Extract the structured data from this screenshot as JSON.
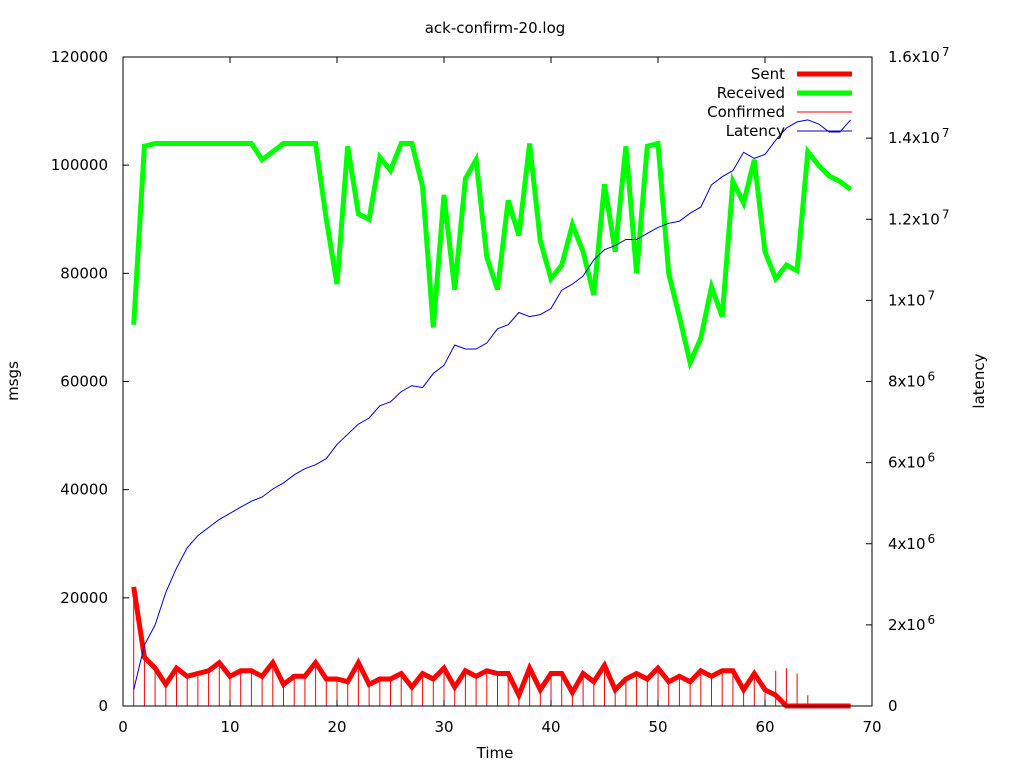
{
  "chart_data": {
    "type": "line",
    "title": "ack-confirm-20.log",
    "xlabel": "Time",
    "ylabel": "msgs",
    "y2label": "latency",
    "xlim": [
      0,
      70
    ],
    "ylim": [
      0,
      120000
    ],
    "y2lim": [
      0,
      16000000
    ],
    "xticks": [
      0,
      10,
      20,
      30,
      40,
      50,
      60,
      70
    ],
    "yticks": [
      "0",
      "20000",
      "40000",
      "60000",
      "80000",
      "100000",
      "120000"
    ],
    "y2ticks": [
      {
        "base": "0",
        "exp": ""
      },
      {
        "base": "2x10",
        "exp": "6"
      },
      {
        "base": "4x10",
        "exp": "6"
      },
      {
        "base": "6x10",
        "exp": "6"
      },
      {
        "base": "8x10",
        "exp": "6"
      },
      {
        "base": "1x10",
        "exp": "7"
      },
      {
        "base": "1.2x10",
        "exp": "7"
      },
      {
        "base": "1.4x10",
        "exp": "7"
      },
      {
        "base": "1.6x10",
        "exp": "7"
      }
    ],
    "y2tick_values": [
      0,
      2000000,
      4000000,
      6000000,
      8000000,
      10000000,
      12000000,
      14000000,
      16000000
    ],
    "legend_position": "top-right",
    "grid": false,
    "series": [
      {
        "name": "Sent",
        "axis": "y",
        "style": "thick-line",
        "color": "#ff0000",
        "x": [
          1,
          2,
          3,
          4,
          5,
          6,
          7,
          8,
          9,
          10,
          11,
          12,
          13,
          14,
          15,
          16,
          17,
          18,
          19,
          20,
          21,
          22,
          23,
          24,
          25,
          26,
          27,
          28,
          29,
          30,
          31,
          32,
          33,
          34,
          35,
          36,
          37,
          38,
          39,
          40,
          41,
          42,
          43,
          44,
          45,
          46,
          47,
          48,
          49,
          50,
          51,
          52,
          53,
          54,
          55,
          56,
          57,
          58,
          59,
          60,
          61,
          62,
          63,
          64,
          65,
          66,
          67,
          68
        ],
        "values": [
          22000,
          9000,
          7000,
          4000,
          7000,
          5500,
          6000,
          6500,
          8000,
          5500,
          6500,
          6500,
          5500,
          8000,
          4000,
          5500,
          5500,
          8000,
          5000,
          5000,
          4500,
          8000,
          4000,
          5000,
          5000,
          6000,
          3500,
          6000,
          5000,
          7000,
          3500,
          6500,
          5500,
          6500,
          6000,
          6000,
          2000,
          7000,
          3000,
          6000,
          6000,
          2500,
          6000,
          4500,
          7500,
          3000,
          5000,
          6000,
          5000,
          7000,
          4500,
          5500,
          4500,
          6500,
          5500,
          6500,
          6500,
          3000,
          6000,
          3000,
          2000,
          0,
          0,
          0,
          0,
          0,
          0,
          0
        ]
      },
      {
        "name": "Received",
        "axis": "y",
        "style": "thick-line",
        "color": "#00ff00",
        "x": [
          1,
          2,
          3,
          4,
          5,
          6,
          7,
          8,
          9,
          10,
          11,
          12,
          13,
          14,
          15,
          16,
          17,
          18,
          19,
          20,
          21,
          22,
          23,
          24,
          25,
          26,
          27,
          28,
          29,
          30,
          31,
          32,
          33,
          34,
          35,
          36,
          37,
          38,
          39,
          40,
          41,
          42,
          43,
          44,
          45,
          46,
          47,
          48,
          49,
          50,
          51,
          52,
          53,
          54,
          55,
          56,
          57,
          58,
          59,
          60,
          61,
          62,
          63,
          64,
          65,
          66,
          67,
          68
        ],
        "values": [
          70500,
          103500,
          104000,
          104000,
          104000,
          104000,
          104000,
          104000,
          104000,
          104000,
          104000,
          104000,
          101000,
          102500,
          104000,
          104000,
          104000,
          104000,
          90000,
          78000,
          103500,
          91000,
          90000,
          101500,
          99000,
          104000,
          104000,
          96000,
          70000,
          94500,
          77000,
          97500,
          101000,
          83000,
          77000,
          93500,
          87000,
          104000,
          86000,
          79000,
          81500,
          89000,
          84000,
          76000,
          96500,
          84000,
          103500,
          80000,
          103500,
          104000,
          80000,
          72000,
          63500,
          68000,
          77500,
          72000,
          97000,
          93000,
          101000,
          84000,
          79000,
          81500,
          80500,
          102500,
          100000,
          98000,
          97000,
          95500
        ]
      },
      {
        "name": "Confirmed",
        "axis": "y",
        "style": "impulses",
        "color": "#ff0000",
        "x": [
          1,
          2,
          3,
          4,
          5,
          6,
          7,
          8,
          9,
          10,
          11,
          12,
          13,
          14,
          15,
          16,
          17,
          18,
          19,
          20,
          21,
          22,
          23,
          24,
          25,
          26,
          27,
          28,
          29,
          30,
          31,
          32,
          33,
          34,
          35,
          36,
          37,
          38,
          39,
          40,
          41,
          42,
          43,
          44,
          45,
          46,
          47,
          48,
          49,
          50,
          51,
          52,
          53,
          54,
          55,
          56,
          57,
          58,
          59,
          60,
          61,
          62,
          63,
          64
        ],
        "values": [
          22000,
          9000,
          7000,
          4000,
          7000,
          5500,
          6000,
          6500,
          8000,
          5500,
          6500,
          6500,
          5500,
          8000,
          4000,
          5500,
          5500,
          8000,
          5000,
          5000,
          4500,
          8000,
          4000,
          5000,
          5000,
          6000,
          3500,
          6000,
          5000,
          7000,
          3500,
          6500,
          5500,
          6500,
          6000,
          6000,
          2000,
          7000,
          3000,
          6000,
          6000,
          2500,
          6000,
          4500,
          7500,
          3000,
          5000,
          6000,
          5000,
          7000,
          4500,
          5500,
          4500,
          6500,
          5500,
          6500,
          6500,
          3000,
          6000,
          3000,
          6500,
          7000,
          6000,
          2000
        ]
      },
      {
        "name": "Latency",
        "axis": "y2",
        "style": "thin-line",
        "color": "#0000cc",
        "x": [
          1,
          2,
          3,
          4,
          5,
          6,
          7,
          8,
          9,
          10,
          11,
          12,
          13,
          14,
          15,
          16,
          17,
          18,
          19,
          20,
          21,
          22,
          23,
          24,
          25,
          26,
          27,
          28,
          29,
          30,
          31,
          32,
          33,
          34,
          35,
          36,
          37,
          38,
          39,
          40,
          41,
          42,
          43,
          44,
          45,
          46,
          47,
          48,
          49,
          50,
          51,
          52,
          53,
          54,
          55,
          56,
          57,
          58,
          59,
          60,
          61,
          62,
          63,
          64,
          65,
          66,
          67,
          68
        ],
        "values": [
          400000,
          1500000,
          2000000,
          2800000,
          3400000,
          3900000,
          4200000,
          4400000,
          4600000,
          4750000,
          4900000,
          5050000,
          5150000,
          5350000,
          5500000,
          5700000,
          5850000,
          5950000,
          6100000,
          6450000,
          6700000,
          6950000,
          7100000,
          7400000,
          7500000,
          7750000,
          7900000,
          7850000,
          8200000,
          8400000,
          8900000,
          8800000,
          8800000,
          8950000,
          9300000,
          9400000,
          9700000,
          9600000,
          9650000,
          9800000,
          10250000,
          10400000,
          10600000,
          11000000,
          11250000,
          11350000,
          11500000,
          11500000,
          11650000,
          11800000,
          11900000,
          11950000,
          12150000,
          12300000,
          12850000,
          13050000,
          13200000,
          13650000,
          13500000,
          13600000,
          13950000,
          14250000,
          14400000,
          14450000,
          14350000,
          14150000,
          14150000,
          14450000
        ]
      }
    ]
  }
}
